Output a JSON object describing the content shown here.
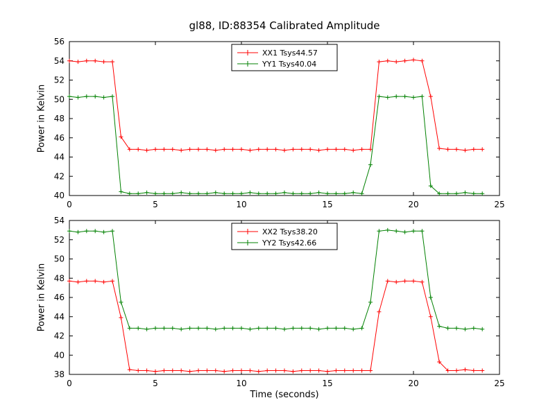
{
  "figure": {
    "title": "gl88, ID:88354 Calibrated Amplitude",
    "xlabel": "Time (seconds)",
    "ylabel": "Power in Kelvin"
  },
  "chart_data": [
    {
      "type": "line",
      "title": "gl88, ID:88354 Calibrated Amplitude",
      "xlabel": "",
      "ylabel": "Power in Kelvin",
      "xlim": [
        0,
        25
      ],
      "ylim": [
        40,
        56
      ],
      "xticks": [
        0,
        5,
        10,
        15,
        20,
        25
      ],
      "yticks": [
        40,
        42,
        44,
        46,
        48,
        50,
        52,
        54,
        56
      ],
      "grid": false,
      "legend_position": "upper center",
      "marker": "+",
      "x": [
        0,
        0.5,
        1,
        1.5,
        2,
        2.5,
        3,
        3.5,
        4,
        4.5,
        5,
        5.5,
        6,
        6.5,
        7,
        7.5,
        8,
        8.5,
        9,
        9.5,
        10,
        10.5,
        11,
        11.5,
        12,
        12.5,
        13,
        13.5,
        14,
        14.5,
        15,
        15.5,
        16,
        16.5,
        17,
        17.5,
        18,
        18.5,
        19,
        19.5,
        20,
        20.5,
        21,
        21.5,
        22,
        22.5,
        23,
        23.5,
        24
      ],
      "series": [
        {
          "name": "XX1 Tsys44.57",
          "color": "#ff0000",
          "values": [
            54.0,
            53.9,
            54.0,
            54.0,
            53.9,
            53.9,
            46.1,
            44.8,
            44.8,
            44.7,
            44.8,
            44.8,
            44.8,
            44.7,
            44.8,
            44.8,
            44.8,
            44.7,
            44.8,
            44.8,
            44.8,
            44.7,
            44.8,
            44.8,
            44.8,
            44.7,
            44.8,
            44.8,
            44.8,
            44.7,
            44.8,
            44.8,
            44.8,
            44.7,
            44.8,
            44.8,
            53.9,
            54.0,
            53.9,
            54.0,
            54.1,
            54.0,
            50.3,
            44.9,
            44.8,
            44.8,
            44.7,
            44.8,
            44.8
          ]
        },
        {
          "name": "YY1 Tsys40.04",
          "color": "#008000",
          "values": [
            50.3,
            50.2,
            50.3,
            50.3,
            50.2,
            50.3,
            40.4,
            40.2,
            40.2,
            40.3,
            40.2,
            40.2,
            40.2,
            40.3,
            40.2,
            40.2,
            40.2,
            40.3,
            40.2,
            40.2,
            40.2,
            40.3,
            40.2,
            40.2,
            40.2,
            40.3,
            40.2,
            40.2,
            40.2,
            40.3,
            40.2,
            40.2,
            40.2,
            40.3,
            40.2,
            43.2,
            50.3,
            50.2,
            50.3,
            50.3,
            50.2,
            50.3,
            41.0,
            40.2,
            40.2,
            40.2,
            40.3,
            40.2,
            40.2
          ]
        }
      ]
    },
    {
      "type": "line",
      "title": "",
      "xlabel": "Time (seconds)",
      "ylabel": "Power in Kelvin",
      "xlim": [
        0,
        25
      ],
      "ylim": [
        38,
        54
      ],
      "xticks": [
        0,
        5,
        10,
        15,
        20,
        25
      ],
      "yticks": [
        38,
        40,
        42,
        44,
        46,
        48,
        50,
        52,
        54
      ],
      "grid": false,
      "legend_position": "upper center",
      "marker": "+",
      "x": [
        0,
        0.5,
        1,
        1.5,
        2,
        2.5,
        3,
        3.5,
        4,
        4.5,
        5,
        5.5,
        6,
        6.5,
        7,
        7.5,
        8,
        8.5,
        9,
        9.5,
        10,
        10.5,
        11,
        11.5,
        12,
        12.5,
        13,
        13.5,
        14,
        14.5,
        15,
        15.5,
        16,
        16.5,
        17,
        17.5,
        18,
        18.5,
        19,
        19.5,
        20,
        20.5,
        21,
        21.5,
        22,
        22.5,
        23,
        23.5,
        24
      ],
      "series": [
        {
          "name": "XX2 Tsys38.20",
          "color": "#ff0000",
          "values": [
            47.7,
            47.6,
            47.7,
            47.7,
            47.6,
            47.7,
            43.9,
            38.5,
            38.4,
            38.4,
            38.3,
            38.4,
            38.4,
            38.4,
            38.3,
            38.4,
            38.4,
            38.4,
            38.3,
            38.4,
            38.4,
            38.4,
            38.3,
            38.4,
            38.4,
            38.4,
            38.3,
            38.4,
            38.4,
            38.4,
            38.3,
            38.4,
            38.4,
            38.4,
            38.4,
            38.4,
            44.5,
            47.7,
            47.6,
            47.7,
            47.7,
            47.6,
            44.0,
            39.3,
            38.4,
            38.4,
            38.5,
            38.4,
            38.4
          ]
        },
        {
          "name": "YY2 Tsys42.66",
          "color": "#008000",
          "values": [
            52.9,
            52.8,
            52.9,
            52.9,
            52.8,
            52.9,
            45.5,
            42.8,
            42.8,
            42.7,
            42.8,
            42.8,
            42.8,
            42.7,
            42.8,
            42.8,
            42.8,
            42.7,
            42.8,
            42.8,
            42.8,
            42.7,
            42.8,
            42.8,
            42.8,
            42.7,
            42.8,
            42.8,
            42.8,
            42.7,
            42.8,
            42.8,
            42.8,
            42.7,
            42.8,
            45.5,
            52.9,
            53.0,
            52.9,
            52.8,
            52.9,
            52.9,
            46.0,
            43.0,
            42.8,
            42.8,
            42.7,
            42.8,
            42.7
          ]
        }
      ]
    }
  ]
}
